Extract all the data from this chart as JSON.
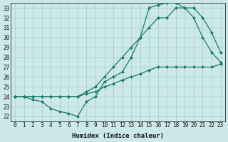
{
  "xlabel": "Humidex (Indice chaleur)",
  "bg_color": "#cce8e8",
  "line_color": "#1a7a6e",
  "grid_color": "#aacfcf",
  "xlim": [
    -0.5,
    23.5
  ],
  "ylim": [
    21.5,
    33.5
  ],
  "xticks": [
    0,
    1,
    2,
    3,
    4,
    5,
    6,
    7,
    8,
    9,
    10,
    11,
    12,
    13,
    14,
    15,
    16,
    17,
    18,
    19,
    20,
    21,
    22,
    23
  ],
  "yticks": [
    22,
    23,
    24,
    25,
    26,
    27,
    28,
    29,
    30,
    31,
    32,
    33
  ],
  "line1_x": [
    0,
    1,
    2,
    3,
    4,
    5,
    6,
    7,
    8,
    9,
    10,
    11,
    12,
    13,
    14,
    15,
    16,
    17,
    18,
    19,
    20,
    21,
    22,
    23
  ],
  "line1_y": [
    24,
    24,
    24,
    24,
    24,
    24,
    24,
    24,
    24.3,
    24.5,
    25,
    25.3,
    25.7,
    26,
    26.3,
    26.7,
    27,
    27,
    27,
    27,
    27,
    27,
    27,
    27.3
  ],
  "line2_x": [
    0,
    1,
    2,
    3,
    4,
    5,
    6,
    7,
    8,
    9,
    10,
    11,
    12,
    13,
    14,
    15,
    16,
    17,
    18,
    19,
    20,
    21,
    22,
    23
  ],
  "line2_y": [
    24,
    24,
    24,
    24,
    24,
    24,
    24,
    24,
    24.5,
    25,
    26,
    27,
    28,
    29,
    30,
    31,
    32,
    32,
    33,
    33,
    33,
    32,
    30.5,
    28.5
  ],
  "line3_x": [
    0,
    1,
    2,
    3,
    4,
    5,
    6,
    7,
    8,
    9,
    10,
    11,
    12,
    13,
    14,
    15,
    16,
    17,
    18,
    19,
    20,
    21,
    22,
    23
  ],
  "line3_y": [
    24,
    24,
    23.7,
    23.5,
    22.8,
    22.5,
    22.3,
    22,
    23.5,
    24,
    25.5,
    26,
    26.5,
    28,
    30,
    33,
    33.3,
    33.5,
    33.5,
    33,
    32,
    30,
    28.5,
    27.5
  ]
}
